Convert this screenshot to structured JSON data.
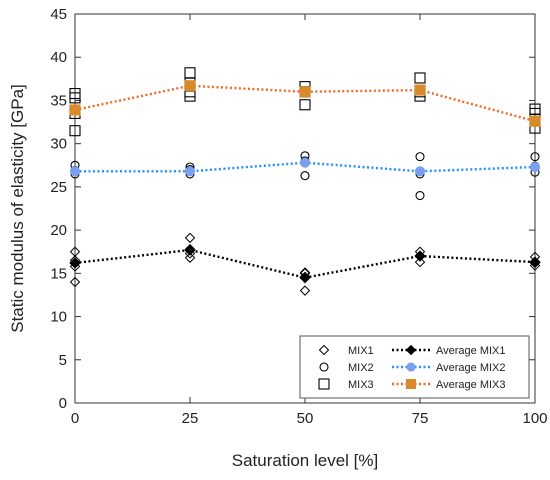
{
  "chart_data": {
    "type": "scatter",
    "xlabel": "Saturation level [%]",
    "ylabel": "Static modulus of elasticity [GPa]",
    "xlim": [
      0,
      100
    ],
    "ylim": [
      0,
      45
    ],
    "xticks": [
      "0",
      "25",
      "50",
      "75",
      "100"
    ],
    "yticks": [
      "0",
      "5",
      "10",
      "15",
      "20",
      "25",
      "30",
      "35",
      "40",
      "45"
    ],
    "grid": false,
    "legend_position": "bottom-right",
    "scatter_series": [
      {
        "name": "MIX1",
        "marker": "diamond",
        "color": "#000000",
        "points": [
          [
            0,
            14.0
          ],
          [
            0,
            15.8
          ],
          [
            0,
            16.5
          ],
          [
            0,
            17.5
          ],
          [
            25,
            16.8
          ],
          [
            25,
            17.3
          ],
          [
            25,
            17.8
          ],
          [
            25,
            19.1
          ],
          [
            50,
            13.0
          ],
          [
            50,
            14.6
          ],
          [
            50,
            15.0
          ],
          [
            50,
            15.1
          ],
          [
            75,
            16.3
          ],
          [
            75,
            17.0
          ],
          [
            75,
            17.5
          ],
          [
            100,
            15.9
          ],
          [
            100,
            16.2
          ],
          [
            100,
            16.9
          ]
        ]
      },
      {
        "name": "MIX2",
        "marker": "circle",
        "color": "#000000",
        "points": [
          [
            0,
            26.5
          ],
          [
            0,
            26.9
          ],
          [
            0,
            27.5
          ],
          [
            25,
            26.5
          ],
          [
            25,
            27.0
          ],
          [
            25,
            27.3
          ],
          [
            50,
            26.3
          ],
          [
            50,
            28.0
          ],
          [
            50,
            28.6
          ],
          [
            75,
            24.0
          ],
          [
            75,
            26.5
          ],
          [
            75,
            28.5
          ],
          [
            100,
            26.7
          ],
          [
            100,
            27.4
          ],
          [
            100,
            28.5
          ]
        ]
      },
      {
        "name": "MIX3",
        "marker": "square",
        "color": "#000000",
        "points": [
          [
            0,
            31.5
          ],
          [
            0,
            33.5
          ],
          [
            0,
            35.3
          ],
          [
            0,
            35.8
          ],
          [
            25,
            35.5
          ],
          [
            25,
            36.0
          ],
          [
            25,
            37.0
          ],
          [
            25,
            38.2
          ],
          [
            50,
            34.5
          ],
          [
            50,
            36.0
          ],
          [
            50,
            36.6
          ],
          [
            75,
            35.5
          ],
          [
            75,
            36.0
          ],
          [
            75,
            37.6
          ],
          [
            100,
            31.8
          ],
          [
            100,
            32.8
          ],
          [
            100,
            33.5
          ],
          [
            100,
            34.0
          ]
        ]
      }
    ],
    "series": [
      {
        "name": "Average MIX1",
        "marker": "diamond",
        "line": "dotted",
        "color": "#000000",
        "x": [
          0,
          25,
          50,
          75,
          100
        ],
        "values": [
          16.2,
          17.7,
          14.5,
          17.0,
          16.3
        ]
      },
      {
        "name": "Average MIX2",
        "marker": "circle",
        "line": "dotted",
        "color": "#1E90FF",
        "x": [
          0,
          25,
          50,
          75,
          100
        ],
        "values": [
          26.8,
          26.8,
          27.8,
          26.8,
          27.3
        ]
      },
      {
        "name": "Average MIX3",
        "marker": "square",
        "line": "dotted",
        "color": "#F26522",
        "x": [
          0,
          25,
          50,
          75,
          100
        ],
        "values": [
          33.9,
          36.7,
          36.0,
          36.2,
          32.6
        ]
      }
    ]
  },
  "colors": {
    "avg_mix1_marker": "#000000",
    "avg_mix2_marker": "#7B9FEF",
    "avg_mix3_marker": "#D98A2B",
    "avg_mix2_line": "#1E90FF",
    "avg_mix3_line": "#F26522"
  }
}
